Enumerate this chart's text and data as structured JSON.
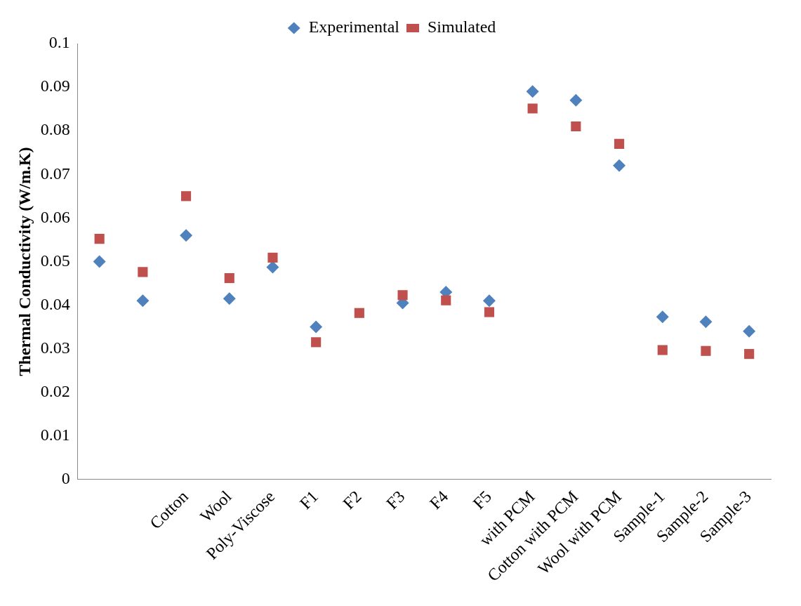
{
  "chart_data": {
    "type": "scatter",
    "ylabel": "Thermal Conductivity (W/m.K)",
    "categories": [
      null,
      null,
      "Cotton",
      "Wool",
      "Poly-Viscose",
      "F1",
      "F2",
      "F3",
      "F4",
      "F5",
      "with PCM",
      "Cotton with PCM",
      "Wool with PCM",
      "Sample-1",
      "Sample-2",
      "Sample-3"
    ],
    "series": [
      {
        "name": "Experimental",
        "color": "#4f81bd",
        "marker": "diamond",
        "values": [
          0.05,
          0.041,
          0.056,
          0.0415,
          0.0487,
          0.035,
          null,
          0.0405,
          0.043,
          0.041,
          0.089,
          0.087,
          0.072,
          0.0373,
          0.0362,
          0.034
        ]
      },
      {
        "name": "Simulated",
        "color": "#c0504d",
        "marker": "square",
        "values": [
          0.0552,
          0.0476,
          0.065,
          0.0462,
          0.0509,
          0.0315,
          0.0382,
          0.0423,
          0.0411,
          0.0384,
          0.0851,
          0.081,
          0.077,
          0.0297,
          0.0295,
          0.0288
        ]
      }
    ],
    "ylim": [
      0,
      0.1
    ],
    "yticks": [
      0,
      0.01,
      0.02,
      0.03,
      0.04,
      0.05,
      0.06,
      0.07,
      0.08,
      0.09,
      0.1
    ],
    "grid": false,
    "legend": "top"
  }
}
